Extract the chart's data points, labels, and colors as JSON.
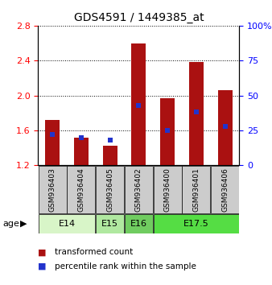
{
  "title": "GDS4591 / 1449385_at",
  "samples": [
    "GSM936403",
    "GSM936404",
    "GSM936405",
    "GSM936402",
    "GSM936400",
    "GSM936401",
    "GSM936406"
  ],
  "transformed_count": [
    1.72,
    1.52,
    1.42,
    2.6,
    1.97,
    2.38,
    2.06
  ],
  "percentile_rank": [
    22,
    20,
    18,
    43,
    25,
    38,
    28
  ],
  "ylim_left": [
    1.2,
    2.8
  ],
  "ylim_right": [
    0,
    100
  ],
  "yticks_left": [
    1.2,
    1.6,
    2.0,
    2.4,
    2.8
  ],
  "yticks_right": [
    0,
    25,
    50,
    75,
    100
  ],
  "ytick_right_labels": [
    "0",
    "25",
    "50",
    "75",
    "100%"
  ],
  "groups": [
    {
      "label": "E14",
      "start": 0,
      "end": 2,
      "color": "#d8f5c8"
    },
    {
      "label": "E15",
      "start": 2,
      "end": 3,
      "color": "#b0e8a0"
    },
    {
      "label": "E16",
      "start": 3,
      "end": 4,
      "color": "#70cc60"
    },
    {
      "label": "E17.5",
      "start": 4,
      "end": 7,
      "color": "#55dd44"
    }
  ],
  "bar_color": "#aa1111",
  "blue_color": "#2233cc",
  "bar_width": 0.5,
  "sample_bg_color": "#cccccc",
  "legend_items": [
    {
      "color": "#aa1111",
      "label": "transformed count"
    },
    {
      "color": "#2233cc",
      "label": "percentile rank within the sample"
    }
  ]
}
